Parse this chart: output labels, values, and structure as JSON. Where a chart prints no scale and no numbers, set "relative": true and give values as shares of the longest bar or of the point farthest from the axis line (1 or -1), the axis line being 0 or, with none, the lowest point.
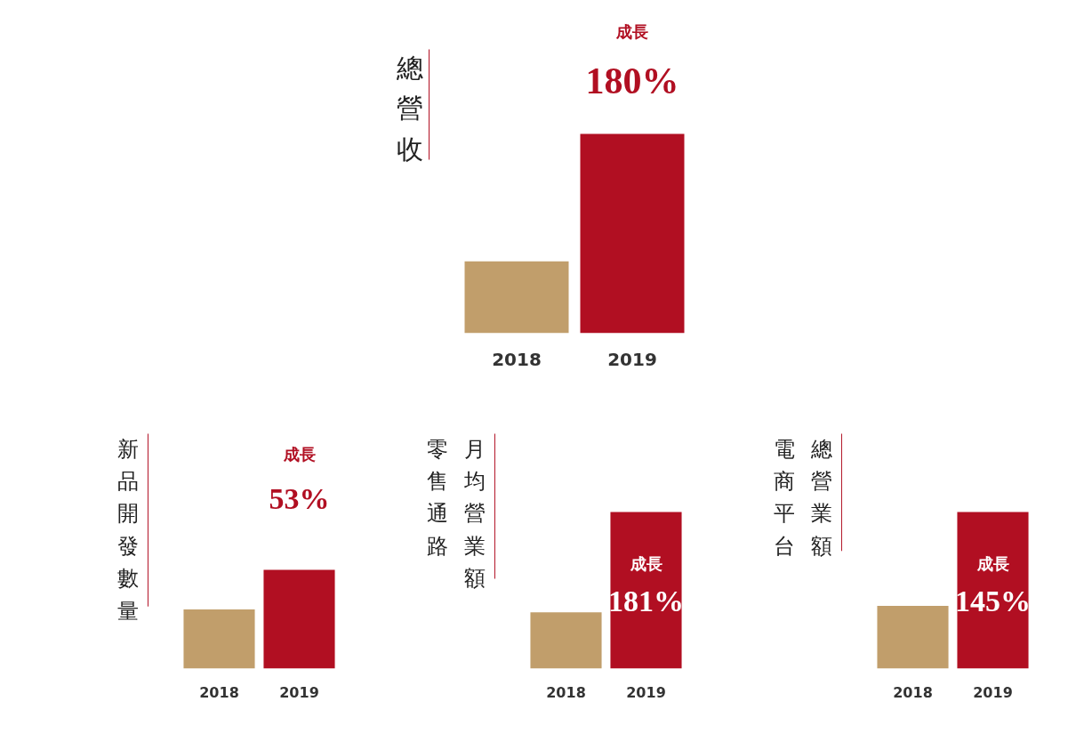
{
  "chart_data": [
    {
      "type": "bar",
      "title": "總營收",
      "categories": [
        "2018",
        "2019"
      ],
      "values": [
        0.36,
        1
      ],
      "colors": [
        "#c19e6b",
        "#b10f22"
      ],
      "relative": true,
      "annotations": [
        "成長",
        "180%"
      ]
    },
    {
      "type": "bar",
      "title": "新品開發數量",
      "categories": [
        "2018",
        "2019"
      ],
      "values": [
        0.6,
        1
      ],
      "colors": [
        "#c19e6b",
        "#b10f22"
      ],
      "relative": true,
      "annotations": [
        "成長",
        "53%"
      ]
    },
    {
      "type": "bar",
      "title": "零售通路",
      "subtitle": "月均營業額",
      "categories": [
        "2018",
        "2019"
      ],
      "values": [
        0.36,
        1
      ],
      "colors": [
        "#c19e6b",
        "#b10f22"
      ],
      "relative": true,
      "annotations": [
        "成長",
        "181%"
      ]
    },
    {
      "type": "bar",
      "title": "電商平台",
      "subtitle": "總營業額",
      "categories": [
        "2018",
        "2019"
      ],
      "values": [
        0.4,
        1
      ],
      "colors": [
        "#c19e6b",
        "#b10f22"
      ],
      "relative": true,
      "annotations": [
        "成長",
        "145%"
      ]
    }
  ]
}
